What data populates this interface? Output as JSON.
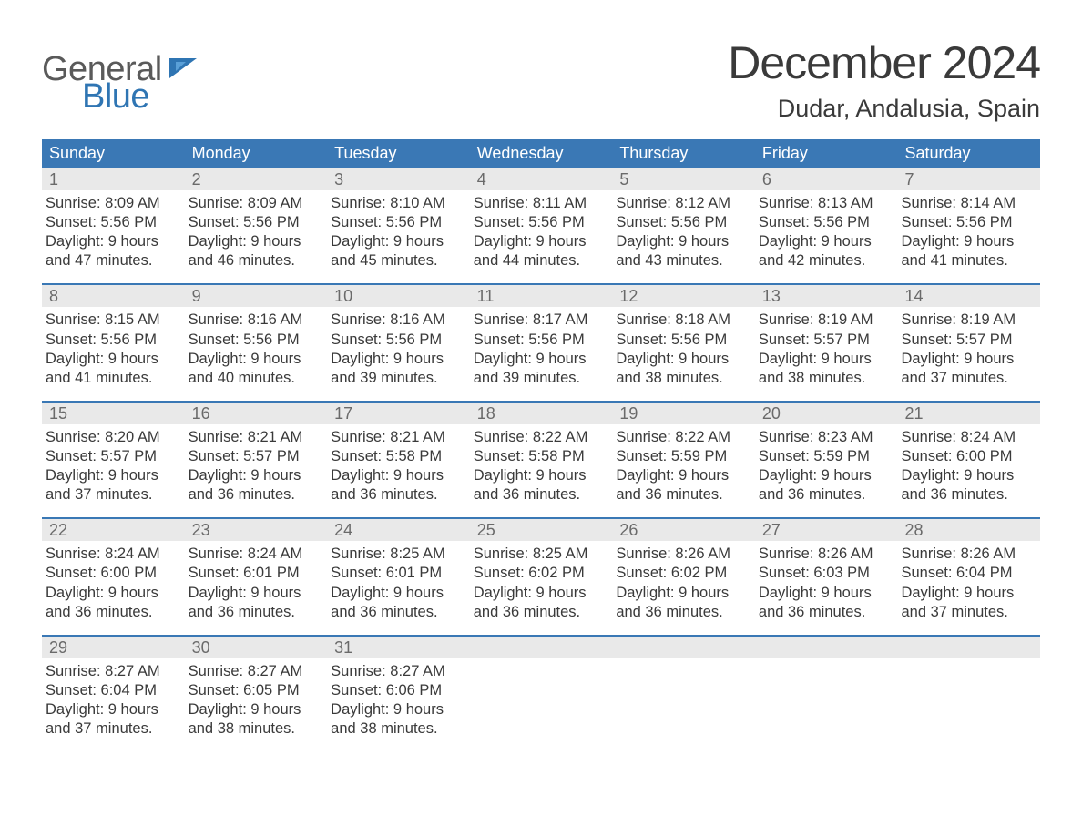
{
  "logo": {
    "word1": "General",
    "word2": "Blue",
    "flag_color": "#2f75b3"
  },
  "title": "December 2024",
  "location": "Dudar, Andalusia, Spain",
  "colors": {
    "header_bg": "#3a78b5",
    "header_text": "#ffffff",
    "daynum_bg": "#e9e9e9",
    "daynum_text": "#6a6a6a",
    "body_text": "#3a3a3a",
    "week_border": "#3a78b5",
    "logo_gray": "#5a5a5a",
    "logo_blue": "#2f75b3",
    "page_bg": "#ffffff"
  },
  "weekdays": [
    "Sunday",
    "Monday",
    "Tuesday",
    "Wednesday",
    "Thursday",
    "Friday",
    "Saturday"
  ],
  "weeks": [
    [
      {
        "n": "1",
        "sunrise": "8:09 AM",
        "sunset": "5:56 PM",
        "dl": "9 hours and 47 minutes."
      },
      {
        "n": "2",
        "sunrise": "8:09 AM",
        "sunset": "5:56 PM",
        "dl": "9 hours and 46 minutes."
      },
      {
        "n": "3",
        "sunrise": "8:10 AM",
        "sunset": "5:56 PM",
        "dl": "9 hours and 45 minutes."
      },
      {
        "n": "4",
        "sunrise": "8:11 AM",
        "sunset": "5:56 PM",
        "dl": "9 hours and 44 minutes."
      },
      {
        "n": "5",
        "sunrise": "8:12 AM",
        "sunset": "5:56 PM",
        "dl": "9 hours and 43 minutes."
      },
      {
        "n": "6",
        "sunrise": "8:13 AM",
        "sunset": "5:56 PM",
        "dl": "9 hours and 42 minutes."
      },
      {
        "n": "7",
        "sunrise": "8:14 AM",
        "sunset": "5:56 PM",
        "dl": "9 hours and 41 minutes."
      }
    ],
    [
      {
        "n": "8",
        "sunrise": "8:15 AM",
        "sunset": "5:56 PM",
        "dl": "9 hours and 41 minutes."
      },
      {
        "n": "9",
        "sunrise": "8:16 AM",
        "sunset": "5:56 PM",
        "dl": "9 hours and 40 minutes."
      },
      {
        "n": "10",
        "sunrise": "8:16 AM",
        "sunset": "5:56 PM",
        "dl": "9 hours and 39 minutes."
      },
      {
        "n": "11",
        "sunrise": "8:17 AM",
        "sunset": "5:56 PM",
        "dl": "9 hours and 39 minutes."
      },
      {
        "n": "12",
        "sunrise": "8:18 AM",
        "sunset": "5:56 PM",
        "dl": "9 hours and 38 minutes."
      },
      {
        "n": "13",
        "sunrise": "8:19 AM",
        "sunset": "5:57 PM",
        "dl": "9 hours and 38 minutes."
      },
      {
        "n": "14",
        "sunrise": "8:19 AM",
        "sunset": "5:57 PM",
        "dl": "9 hours and 37 minutes."
      }
    ],
    [
      {
        "n": "15",
        "sunrise": "8:20 AM",
        "sunset": "5:57 PM",
        "dl": "9 hours and 37 minutes."
      },
      {
        "n": "16",
        "sunrise": "8:21 AM",
        "sunset": "5:57 PM",
        "dl": "9 hours and 36 minutes."
      },
      {
        "n": "17",
        "sunrise": "8:21 AM",
        "sunset": "5:58 PM",
        "dl": "9 hours and 36 minutes."
      },
      {
        "n": "18",
        "sunrise": "8:22 AM",
        "sunset": "5:58 PM",
        "dl": "9 hours and 36 minutes."
      },
      {
        "n": "19",
        "sunrise": "8:22 AM",
        "sunset": "5:59 PM",
        "dl": "9 hours and 36 minutes."
      },
      {
        "n": "20",
        "sunrise": "8:23 AM",
        "sunset": "5:59 PM",
        "dl": "9 hours and 36 minutes."
      },
      {
        "n": "21",
        "sunrise": "8:24 AM",
        "sunset": "6:00 PM",
        "dl": "9 hours and 36 minutes."
      }
    ],
    [
      {
        "n": "22",
        "sunrise": "8:24 AM",
        "sunset": "6:00 PM",
        "dl": "9 hours and 36 minutes."
      },
      {
        "n": "23",
        "sunrise": "8:24 AM",
        "sunset": "6:01 PM",
        "dl": "9 hours and 36 minutes."
      },
      {
        "n": "24",
        "sunrise": "8:25 AM",
        "sunset": "6:01 PM",
        "dl": "9 hours and 36 minutes."
      },
      {
        "n": "25",
        "sunrise": "8:25 AM",
        "sunset": "6:02 PM",
        "dl": "9 hours and 36 minutes."
      },
      {
        "n": "26",
        "sunrise": "8:26 AM",
        "sunset": "6:02 PM",
        "dl": "9 hours and 36 minutes."
      },
      {
        "n": "27",
        "sunrise": "8:26 AM",
        "sunset": "6:03 PM",
        "dl": "9 hours and 36 minutes."
      },
      {
        "n": "28",
        "sunrise": "8:26 AM",
        "sunset": "6:04 PM",
        "dl": "9 hours and 37 minutes."
      }
    ],
    [
      {
        "n": "29",
        "sunrise": "8:27 AM",
        "sunset": "6:04 PM",
        "dl": "9 hours and 37 minutes."
      },
      {
        "n": "30",
        "sunrise": "8:27 AM",
        "sunset": "6:05 PM",
        "dl": "9 hours and 38 minutes."
      },
      {
        "n": "31",
        "sunrise": "8:27 AM",
        "sunset": "6:06 PM",
        "dl": "9 hours and 38 minutes."
      },
      null,
      null,
      null,
      null
    ]
  ],
  "labels": {
    "sunrise": "Sunrise:",
    "sunset": "Sunset:",
    "daylight": "Daylight:"
  },
  "typography": {
    "title_fontsize": 50,
    "location_fontsize": 27,
    "weekday_fontsize": 18,
    "daynum_fontsize": 18,
    "body_fontsize": 16.5,
    "font_family": "Arial"
  }
}
